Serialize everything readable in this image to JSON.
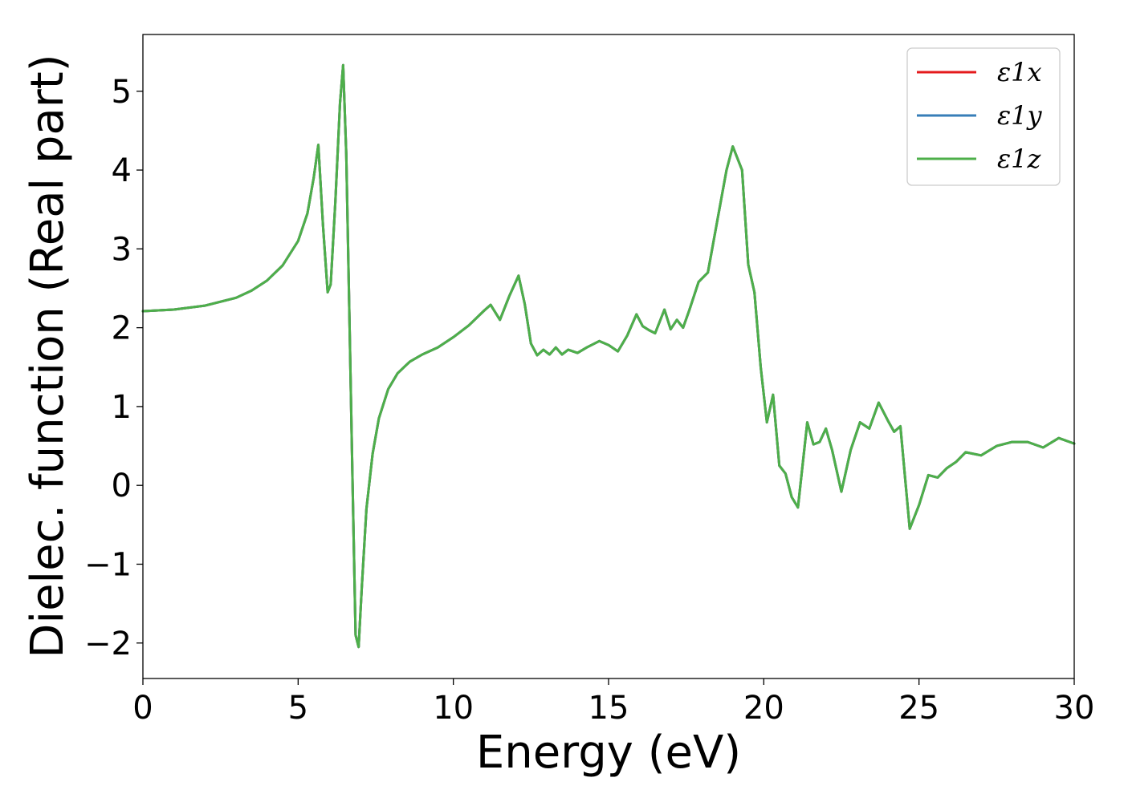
{
  "chart_data": {
    "type": "line",
    "xlabel": "Energy (eV)",
    "ylabel": "Dielec. function (Real part)",
    "xlim": [
      0,
      30
    ],
    "ylim": [
      -2.45,
      5.72
    ],
    "xticks": [
      0,
      5,
      10,
      15,
      20,
      25,
      30
    ],
    "xtick_labels": [
      "0",
      "5",
      "10",
      "15",
      "20",
      "25",
      "30"
    ],
    "yticks": [
      -2,
      -1,
      0,
      1,
      2,
      3,
      4,
      5
    ],
    "ytick_labels": [
      "−2",
      "−1",
      "0",
      "1",
      "2",
      "3",
      "4",
      "5"
    ],
    "grid": false,
    "legend_position": "top-right",
    "series": [
      {
        "name": "ε1x",
        "color": "#e41a1c"
      },
      {
        "name": "ε1y",
        "color": "#377eb8"
      },
      {
        "name": "ε1z",
        "color": "#4daf4a"
      }
    ],
    "x": [
      0,
      1,
      2,
      3,
      3.5,
      4,
      4.5,
      5,
      5.3,
      5.5,
      5.65,
      5.8,
      5.95,
      6.05,
      6.2,
      6.35,
      6.45,
      6.55,
      6.65,
      6.75,
      6.85,
      6.95,
      7.05,
      7.2,
      7.4,
      7.6,
      7.9,
      8.2,
      8.6,
      9.0,
      9.5,
      10.0,
      10.5,
      11.0,
      11.2,
      11.5,
      11.8,
      12.1,
      12.3,
      12.5,
      12.7,
      12.9,
      13.1,
      13.3,
      13.5,
      13.7,
      14.0,
      14.3,
      14.7,
      15.0,
      15.3,
      15.6,
      15.9,
      16.1,
      16.3,
      16.5,
      16.8,
      17.0,
      17.2,
      17.4,
      17.6,
      17.9,
      18.2,
      18.5,
      18.8,
      19.0,
      19.3,
      19.5,
      19.7,
      19.9,
      20.1,
      20.3,
      20.5,
      20.7,
      20.9,
      21.1,
      21.4,
      21.6,
      21.8,
      22.0,
      22.2,
      22.5,
      22.8,
      23.1,
      23.4,
      23.7,
      24.0,
      24.2,
      24.4,
      24.7,
      25.0,
      25.3,
      25.6,
      25.9,
      26.2,
      26.5,
      27.0,
      27.5,
      28.0,
      28.5,
      29.0,
      29.5,
      30.0
    ],
    "y": [
      2.21,
      2.23,
      2.28,
      2.38,
      2.47,
      2.6,
      2.79,
      3.1,
      3.45,
      3.9,
      4.32,
      3.3,
      2.45,
      2.55,
      3.6,
      4.85,
      5.33,
      4.2,
      2.2,
      0.1,
      -1.9,
      -2.05,
      -1.3,
      -0.3,
      0.4,
      0.85,
      1.22,
      1.42,
      1.57,
      1.66,
      1.75,
      1.88,
      2.03,
      2.22,
      2.29,
      2.1,
      2.4,
      2.66,
      2.3,
      1.8,
      1.65,
      1.72,
      1.66,
      1.75,
      1.66,
      1.72,
      1.68,
      1.75,
      1.83,
      1.78,
      1.7,
      1.9,
      2.17,
      2.02,
      1.97,
      1.93,
      2.23,
      1.98,
      2.1,
      2.0,
      2.22,
      2.58,
      2.7,
      3.35,
      4.0,
      4.3,
      4.0,
      2.8,
      2.45,
      1.5,
      0.8,
      1.15,
      0.25,
      0.15,
      -0.15,
      -0.28,
      0.8,
      0.52,
      0.55,
      0.72,
      0.45,
      -0.08,
      0.45,
      0.8,
      0.72,
      1.05,
      0.82,
      0.68,
      0.75,
      -0.55,
      -0.25,
      0.13,
      0.1,
      0.22,
      0.3,
      0.42,
      0.38,
      0.5,
      0.55,
      0.55,
      0.48,
      0.6,
      0.53
    ]
  }
}
